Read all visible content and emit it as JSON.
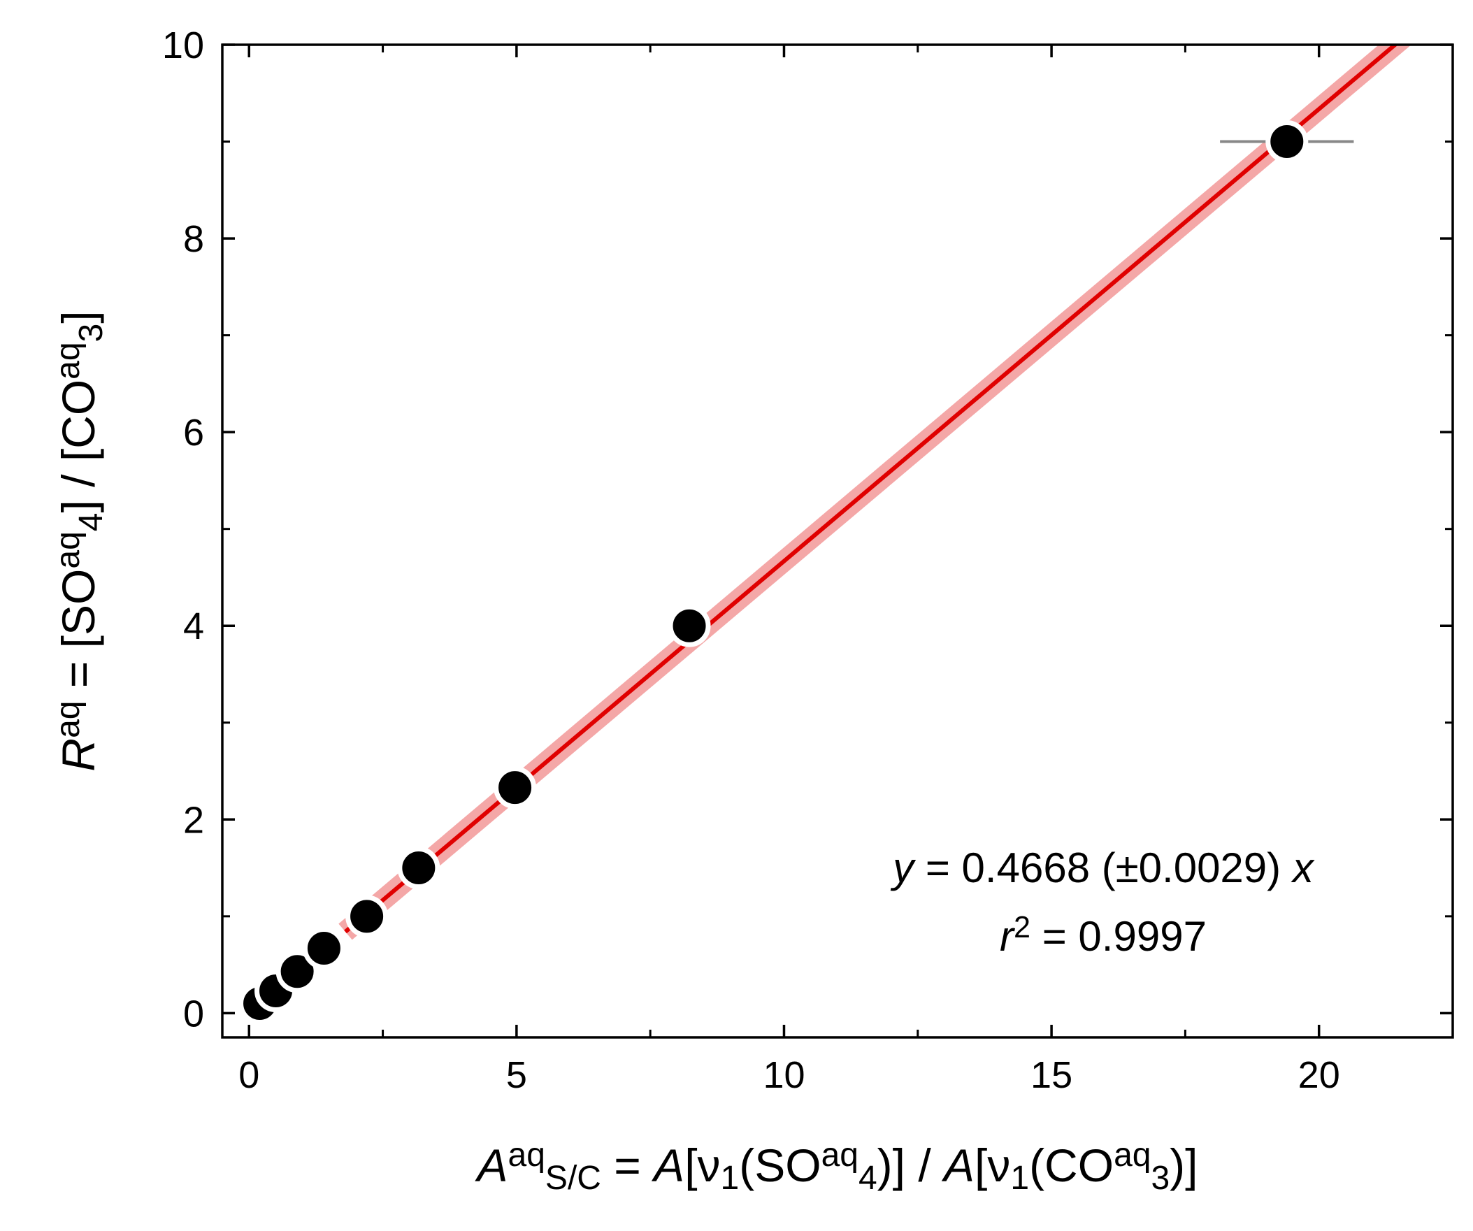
{
  "chart_data": {
    "type": "scatter",
    "xlabel": {
      "parts": [
        {
          "t": "A",
          "style": "italic"
        },
        {
          "t": "aq",
          "style": "sup"
        },
        {
          "t": "S/C",
          "style": "sub"
        },
        {
          "t": " = "
        },
        {
          "t": "A",
          "style": "italic"
        },
        {
          "t": "[ν"
        },
        {
          "t": "1",
          "style": "sub"
        },
        {
          "t": "(SO"
        },
        {
          "t": "aq",
          "style": "sup"
        },
        {
          "t": "4",
          "style": "sub"
        },
        {
          "t": ")] / "
        },
        {
          "t": "A",
          "style": "italic"
        },
        {
          "t": "[ν"
        },
        {
          "t": "1",
          "style": "sub"
        },
        {
          "t": "(CO"
        },
        {
          "t": "aq",
          "style": "sup"
        },
        {
          "t": "3",
          "style": "sub"
        },
        {
          "t": ")]"
        }
      ]
    },
    "ylabel": {
      "parts": [
        {
          "t": "R",
          "style": "italic"
        },
        {
          "t": "aq",
          "style": "sup"
        },
        {
          "t": " = [SO"
        },
        {
          "t": "aq",
          "style": "sup"
        },
        {
          "t": "4",
          "style": "sub"
        },
        {
          "t": "] / [CO"
        },
        {
          "t": "aq",
          "style": "sup"
        },
        {
          "t": "3",
          "style": "sub"
        },
        {
          "t": "]"
        }
      ]
    },
    "xlim": [
      -0.5,
      22.5
    ],
    "ylim": [
      -0.25,
      10
    ],
    "x_ticks": [
      0,
      5,
      10,
      15,
      20
    ],
    "x_tick_labels": [
      "0",
      "5",
      "10",
      "15",
      "20"
    ],
    "x_minor_ticks": [
      2.5,
      7.5,
      12.5,
      17.5,
      22.5
    ],
    "y_ticks": [
      0,
      2,
      4,
      6,
      8,
      10
    ],
    "y_tick_labels": [
      "0",
      "2",
      "4",
      "6",
      "8",
      "10"
    ],
    "y_minor_ticks": [
      1,
      3,
      5,
      7,
      9
    ],
    "grid": false,
    "points": [
      {
        "x": 0.2,
        "y": 0.1
      },
      {
        "x": 0.5,
        "y": 0.23
      },
      {
        "x": 0.9,
        "y": 0.43
      },
      {
        "x": 1.4,
        "y": 0.67
      },
      {
        "x": 2.2,
        "y": 1.0
      },
      {
        "x": 3.17,
        "y": 1.5
      },
      {
        "x": 4.97,
        "y": 2.33
      },
      {
        "x": 8.23,
        "y": 4.0
      },
      {
        "x": 19.4,
        "y": 9.0,
        "xerr": 1.25
      }
    ],
    "fit": {
      "slope": 0.4668,
      "slope_error": 0.0029,
      "intercept": 0,
      "x_range": [
        1.8,
        22.5
      ],
      "color": "#e00000",
      "band_color": "#f4a7a7"
    },
    "marker_color": "#000000",
    "errorbar_color": "#888888",
    "annotation": {
      "line1": {
        "parts": [
          {
            "t": "y",
            "style": "italic"
          },
          {
            "t": " = 0.4668 (±"
          },
          {
            "t": "0.0029) "
          },
          {
            "t": "x",
            "style": "italic"
          }
        ]
      },
      "line2": {
        "parts": [
          {
            "t": "r",
            "style": "italic"
          },
          {
            "t": "2",
            "style": "sup"
          },
          {
            "t": " = 0.9997"
          }
        ]
      }
    }
  }
}
